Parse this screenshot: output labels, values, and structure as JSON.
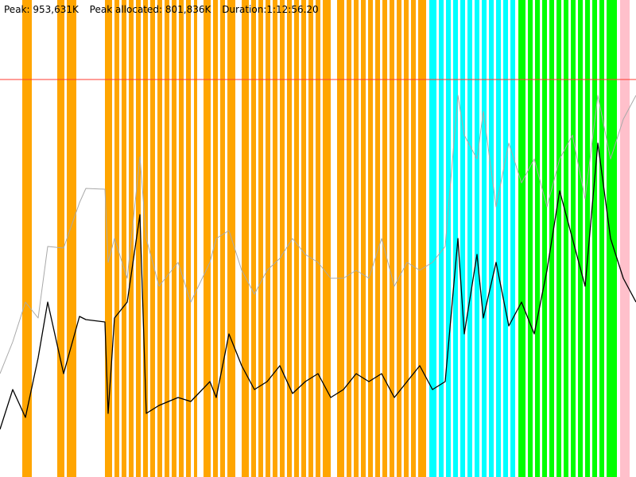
{
  "header": {
    "peak": "Peak: 953,631K",
    "peak_allocated": "Peak allocated: 801,836K",
    "duration": "Duration:1:12:56.20"
  },
  "colors": {
    "background": "#ffffff",
    "peak_line": "#ff3b30",
    "series_total": "#a9a9a9",
    "series_allocated": "#000000",
    "phase_orange": "#ffa500",
    "phase_cyan": "#00ffff",
    "phase_green": "#00ff00",
    "phase_pink": "#ffc0cb"
  },
  "chart_data": {
    "type": "line",
    "title": "",
    "xlabel": "",
    "ylabel": "",
    "x_unit": "time",
    "y_unit": "K",
    "peak_reference_K": 953631,
    "bands": [
      {
        "color": "orange",
        "segments": [
          [
            0.035,
            0.05
          ],
          [
            0.09,
            0.12
          ],
          [
            0.165,
            0.3
          ],
          [
            0.305,
            0.31
          ],
          [
            0.32,
            0.37
          ],
          [
            0.38,
            0.52
          ],
          [
            0.53,
            0.67
          ]
        ]
      },
      {
        "color": "cyan",
        "segments": [
          [
            0.675,
            0.81
          ]
        ]
      },
      {
        "color": "green",
        "segments": [
          [
            0.815,
            0.97
          ]
        ]
      },
      {
        "color": "pink",
        "segments": [
          [
            0.975,
            0.99
          ]
        ]
      }
    ],
    "series": [
      {
        "name": "",
        "color": "gray",
        "points": [
          [
            0,
            470
          ],
          [
            0.02,
            430
          ],
          [
            0.04,
            380
          ],
          [
            0.06,
            400
          ],
          [
            0.075,
            310
          ],
          [
            0.1,
            312
          ],
          [
            0.125,
            255
          ],
          [
            0.135,
            237
          ],
          [
            0.165,
            238
          ],
          [
            0.17,
            330
          ],
          [
            0.18,
            300
          ],
          [
            0.2,
            350
          ],
          [
            0.22,
            197
          ],
          [
            0.23,
            300
          ],
          [
            0.25,
            360
          ],
          [
            0.28,
            330
          ],
          [
            0.3,
            380
          ],
          [
            0.33,
            330
          ],
          [
            0.34,
            300
          ],
          [
            0.36,
            290
          ],
          [
            0.38,
            340
          ],
          [
            0.4,
            370
          ],
          [
            0.42,
            340
          ],
          [
            0.44,
            325
          ],
          [
            0.46,
            300
          ],
          [
            0.48,
            320
          ],
          [
            0.5,
            330
          ],
          [
            0.52,
            350
          ],
          [
            0.54,
            350
          ],
          [
            0.56,
            340
          ],
          [
            0.58,
            350
          ],
          [
            0.6,
            300
          ],
          [
            0.62,
            360
          ],
          [
            0.64,
            330
          ],
          [
            0.66,
            340
          ],
          [
            0.68,
            330
          ],
          [
            0.7,
            310
          ],
          [
            0.72,
            120
          ],
          [
            0.73,
            170
          ],
          [
            0.75,
            200
          ],
          [
            0.76,
            140
          ],
          [
            0.78,
            260
          ],
          [
            0.8,
            180
          ],
          [
            0.82,
            230
          ],
          [
            0.84,
            200
          ],
          [
            0.86,
            260
          ],
          [
            0.88,
            200
          ],
          [
            0.9,
            170
          ],
          [
            0.92,
            250
          ],
          [
            0.94,
            120
          ],
          [
            0.96,
            200
          ],
          [
            0.98,
            150
          ],
          [
            1,
            120
          ]
        ]
      },
      {
        "name": "",
        "color": "black",
        "points": [
          [
            0,
            540
          ],
          [
            0.02,
            490
          ],
          [
            0.04,
            525
          ],
          [
            0.06,
            450
          ],
          [
            0.075,
            380
          ],
          [
            0.1,
            470
          ],
          [
            0.125,
            398
          ],
          [
            0.135,
            402
          ],
          [
            0.165,
            405
          ],
          [
            0.17,
            520
          ],
          [
            0.18,
            400
          ],
          [
            0.2,
            380
          ],
          [
            0.22,
            270
          ],
          [
            0.23,
            520
          ],
          [
            0.25,
            510
          ],
          [
            0.28,
            500
          ],
          [
            0.3,
            505
          ],
          [
            0.33,
            480
          ],
          [
            0.34,
            500
          ],
          [
            0.36,
            420
          ],
          [
            0.38,
            460
          ],
          [
            0.4,
            490
          ],
          [
            0.42,
            480
          ],
          [
            0.44,
            460
          ],
          [
            0.46,
            495
          ],
          [
            0.48,
            480
          ],
          [
            0.5,
            470
          ],
          [
            0.52,
            500
          ],
          [
            0.54,
            490
          ],
          [
            0.56,
            470
          ],
          [
            0.58,
            480
          ],
          [
            0.6,
            470
          ],
          [
            0.62,
            500
          ],
          [
            0.64,
            480
          ],
          [
            0.66,
            460
          ],
          [
            0.68,
            490
          ],
          [
            0.7,
            480
          ],
          [
            0.72,
            300
          ],
          [
            0.73,
            420
          ],
          [
            0.75,
            320
          ],
          [
            0.76,
            400
          ],
          [
            0.78,
            330
          ],
          [
            0.8,
            410
          ],
          [
            0.82,
            380
          ],
          [
            0.84,
            420
          ],
          [
            0.86,
            340
          ],
          [
            0.88,
            240
          ],
          [
            0.9,
            300
          ],
          [
            0.92,
            360
          ],
          [
            0.94,
            180
          ],
          [
            0.96,
            300
          ],
          [
            0.98,
            350
          ],
          [
            1,
            380
          ]
        ]
      }
    ]
  }
}
